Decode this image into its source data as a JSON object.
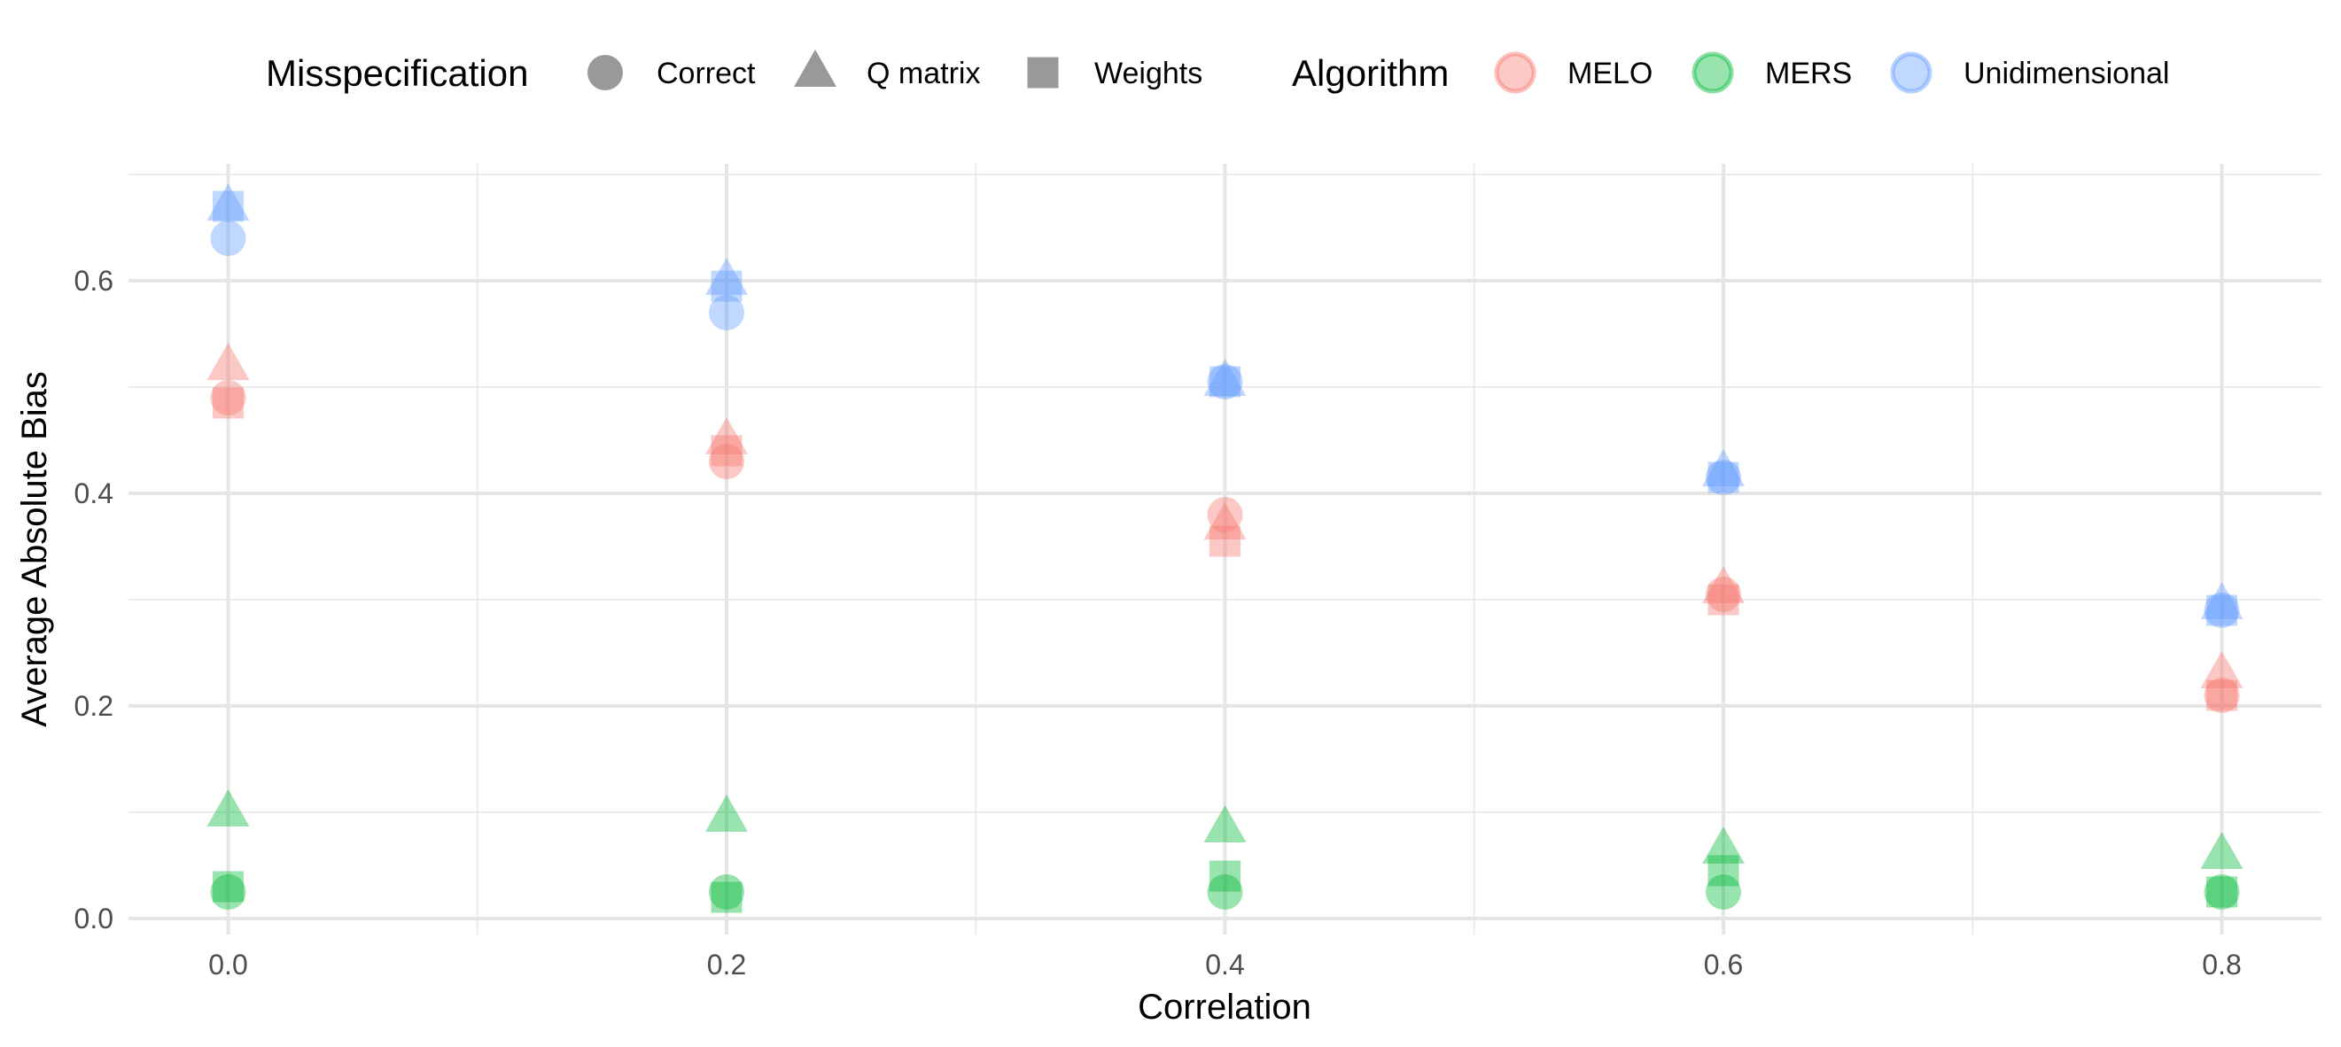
{
  "chart_data": {
    "type": "scatter",
    "xlabel": "Correlation",
    "ylabel": "Average Absolute Bias",
    "xlim": [
      -0.04,
      0.84
    ],
    "ylim": [
      -0.015,
      0.71
    ],
    "x_ticks": [
      0.0,
      0.2,
      0.4,
      0.6,
      0.8
    ],
    "x_tick_labels": [
      "0.0",
      "0.2",
      "0.4",
      "0.6",
      "0.8"
    ],
    "y_ticks": [
      0.0,
      0.2,
      0.4,
      0.6
    ],
    "y_tick_labels": [
      "0.0",
      "0.2",
      "0.4",
      "0.6"
    ],
    "grid": true,
    "legend_position": "top",
    "legends": {
      "shape": {
        "title": "Misspecification",
        "entries": [
          {
            "label": "Correct",
            "shape": "circle"
          },
          {
            "label": "Q matrix",
            "shape": "triangle"
          },
          {
            "label": "Weights",
            "shape": "square"
          }
        ]
      },
      "color": {
        "title": "Algorithm",
        "entries": [
          {
            "label": "MELO",
            "color": "#F8766D"
          },
          {
            "label": "MERS",
            "color": "#00BA38"
          },
          {
            "label": "Unidimensional",
            "color": "#619CFF"
          }
        ]
      }
    },
    "series": [
      {
        "algorithm": "MELO",
        "misspecification": "Correct",
        "color": "#F8766D",
        "shape": "circle",
        "x": [
          0.0,
          0.2,
          0.4,
          0.6,
          0.8
        ],
        "y": [
          0.49,
          0.43,
          0.38,
          0.305,
          0.21
        ]
      },
      {
        "algorithm": "MELO",
        "misspecification": "Q matrix",
        "color": "#F8766D",
        "shape": "triangle",
        "x": [
          0.0,
          0.2,
          0.4,
          0.6,
          0.8
        ],
        "y": [
          0.52,
          0.45,
          0.37,
          0.31,
          0.23
        ]
      },
      {
        "algorithm": "MELO",
        "misspecification": "Weights",
        "color": "#F8766D",
        "shape": "square",
        "x": [
          0.0,
          0.2,
          0.4,
          0.6,
          0.8
        ],
        "y": [
          0.485,
          0.44,
          0.355,
          0.3,
          0.21
        ]
      },
      {
        "algorithm": "MERS",
        "misspecification": "Correct",
        "color": "#00BA38",
        "shape": "circle",
        "x": [
          0.0,
          0.2,
          0.4,
          0.6,
          0.8
        ],
        "y": [
          0.025,
          0.025,
          0.025,
          0.025,
          0.025
        ]
      },
      {
        "algorithm": "MERS",
        "misspecification": "Q matrix",
        "color": "#00BA38",
        "shape": "triangle",
        "x": [
          0.0,
          0.2,
          0.4,
          0.6,
          0.8
        ],
        "y": [
          0.1,
          0.095,
          0.085,
          0.065,
          0.06
        ]
      },
      {
        "algorithm": "MERS",
        "misspecification": "Weights",
        "color": "#00BA38",
        "shape": "square",
        "x": [
          0.0,
          0.2,
          0.4,
          0.6,
          0.8
        ],
        "y": [
          0.03,
          0.02,
          0.04,
          0.045,
          0.025
        ]
      },
      {
        "algorithm": "Unidimensional",
        "misspecification": "Correct",
        "color": "#619CFF",
        "shape": "circle",
        "x": [
          0.0,
          0.2,
          0.4,
          0.6,
          0.8
        ],
        "y": [
          0.64,
          0.57,
          0.505,
          0.415,
          0.29
        ]
      },
      {
        "algorithm": "Unidimensional",
        "misspecification": "Q matrix",
        "color": "#619CFF",
        "shape": "triangle",
        "x": [
          0.0,
          0.2,
          0.4,
          0.6,
          0.8
        ],
        "y": [
          0.67,
          0.6,
          0.505,
          0.42,
          0.295
        ]
      },
      {
        "algorithm": "Unidimensional",
        "misspecification": "Weights",
        "color": "#619CFF",
        "shape": "square",
        "x": [
          0.0,
          0.2,
          0.4,
          0.6,
          0.8
        ],
        "y": [
          0.67,
          0.595,
          0.505,
          0.415,
          0.29
        ]
      }
    ]
  }
}
